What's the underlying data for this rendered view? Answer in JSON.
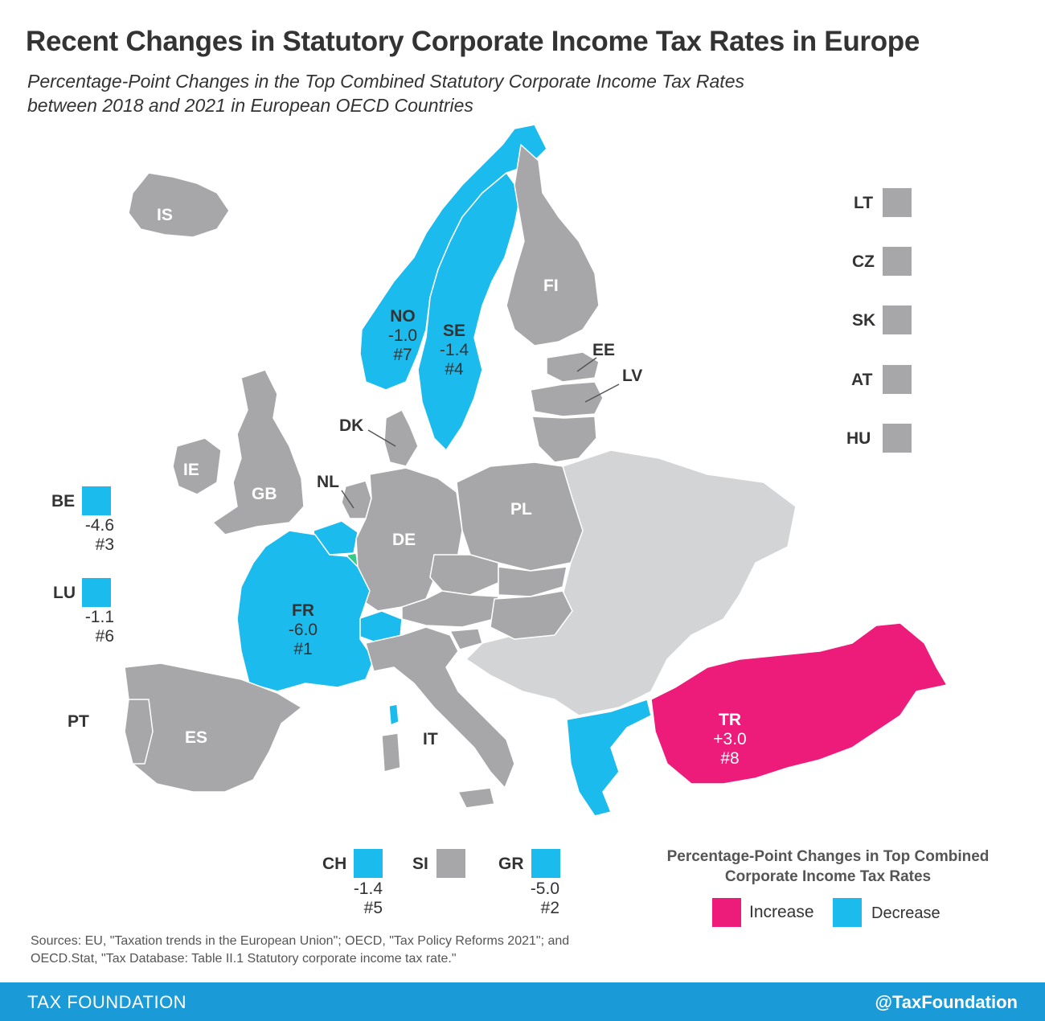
{
  "header": {
    "title": "Recent Changes in Statutory Corporate Income Tax Rates in Europe",
    "subtitle_line1": "Percentage-Point Changes in the Top Combined Statutory Corporate Income Tax Rates",
    "subtitle_line2": "between 2018 and 2021 in European OECD Countries"
  },
  "colors": {
    "increase": "#ed1c7a",
    "decrease": "#1bbbee",
    "no_change": "#a7a7a9",
    "non_oecd": "#d3d4d6",
    "footer": "#1a9bd7"
  },
  "map": {
    "countries": [
      {
        "code": "IS",
        "status": "no_change"
      },
      {
        "code": "NO",
        "status": "decrease",
        "change": "-1.0",
        "rank": "#7"
      },
      {
        "code": "SE",
        "status": "decrease",
        "change": "-1.4",
        "rank": "#4"
      },
      {
        "code": "FI",
        "status": "no_change"
      },
      {
        "code": "EE",
        "status": "no_change"
      },
      {
        "code": "LV",
        "status": "no_change"
      },
      {
        "code": "DK",
        "status": "no_change"
      },
      {
        "code": "IE",
        "status": "no_change"
      },
      {
        "code": "GB",
        "status": "no_change"
      },
      {
        "code": "NL",
        "status": "no_change"
      },
      {
        "code": "DE",
        "status": "no_change"
      },
      {
        "code": "PL",
        "status": "no_change"
      },
      {
        "code": "FR",
        "status": "decrease",
        "change": "-6.0",
        "rank": "#1"
      },
      {
        "code": "PT",
        "status": "no_change"
      },
      {
        "code": "ES",
        "status": "no_change"
      },
      {
        "code": "IT",
        "status": "no_change"
      },
      {
        "code": "TR",
        "status": "increase",
        "change": "+3.0",
        "rank": "#8"
      }
    ]
  },
  "small_states": {
    "right": [
      {
        "code": "LT",
        "status": "no_change"
      },
      {
        "code": "CZ",
        "status": "no_change"
      },
      {
        "code": "SK",
        "status": "no_change"
      },
      {
        "code": "AT",
        "status": "no_change"
      },
      {
        "code": "HU",
        "status": "no_change"
      }
    ],
    "left": [
      {
        "code": "BE",
        "status": "decrease",
        "change": "-4.6",
        "rank": "#3"
      },
      {
        "code": "LU",
        "status": "decrease",
        "change": "-1.1",
        "rank": "#6"
      }
    ],
    "bottom": [
      {
        "code": "CH",
        "status": "decrease",
        "change": "-1.4",
        "rank": "#5"
      },
      {
        "code": "SI",
        "status": "no_change"
      },
      {
        "code": "GR",
        "status": "decrease",
        "change": "-5.0",
        "rank": "#2"
      }
    ]
  },
  "legend": {
    "title_line1": "Percentage-Point Changes in Top Combined",
    "title_line2": "Corporate Income Tax Rates",
    "increase_label": "Increase",
    "decrease_label": "Decrease"
  },
  "source": {
    "line1": "Sources: EU, \"Taxation trends in the European Union\"; OECD, \"Tax Policy Reforms 2021\"; and",
    "line2": "OECD.Stat, \"Tax Database: Table II.1 Statutory corporate income tax rate.\""
  },
  "footer": {
    "left": "TAX FOUNDATION",
    "right": "@TaxFoundation"
  }
}
